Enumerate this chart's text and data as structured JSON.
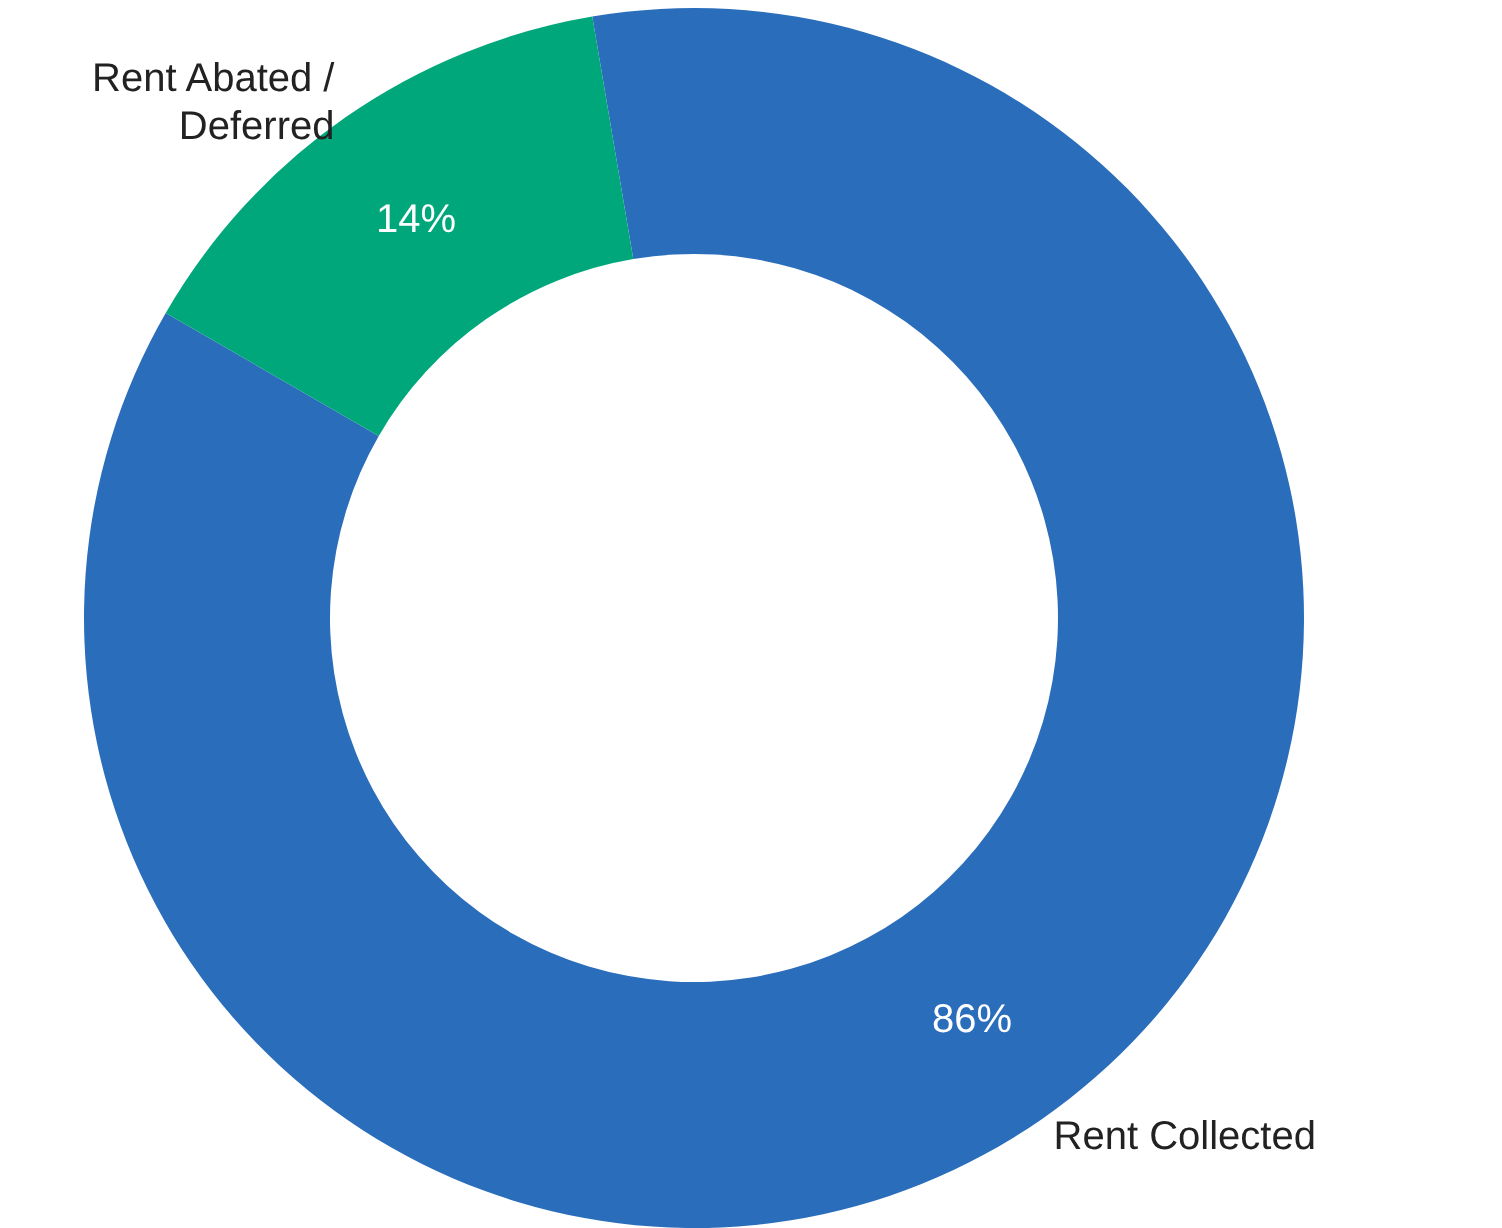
{
  "chart_data": {
    "type": "donut",
    "categories": [
      "Rent Collected",
      "Rent Abated / Deferred"
    ],
    "values": [
      86,
      14
    ],
    "colors": [
      "#2a6ebb",
      "#00a77a"
    ],
    "value_labels": [
      "86%",
      "14%"
    ]
  }
}
